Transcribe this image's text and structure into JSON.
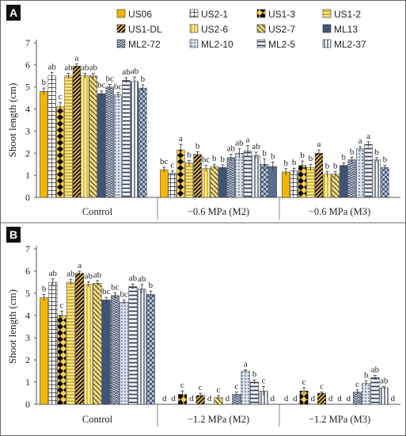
{
  "chart_data": [
    {
      "panel_label": "A",
      "type": "bar",
      "ylabel": "Shoot length (cm)",
      "ylim": [
        0,
        7
      ],
      "yticks": [
        "0",
        "1",
        "2",
        "3",
        "4",
        "5",
        "6",
        "7"
      ],
      "categories": [
        "Control",
        "−0.6 MPa (M2)",
        "−0.6 MPa (M3)"
      ],
      "legend_position": "top-right",
      "series": [
        {
          "name": "US06",
          "values": [
            4.8,
            1.25,
            1.15
          ],
          "errors": [
            0.15,
            0.12,
            0.15
          ],
          "letters": [
            "b",
            "bc",
            "b"
          ]
        },
        {
          "name": "US2-1",
          "values": [
            5.5,
            1.1,
            1.2
          ],
          "errors": [
            0.15,
            0.1,
            0.12
          ],
          "letters": [
            "ab",
            "c",
            "b"
          ]
        },
        {
          "name": "US1-3",
          "values": [
            4.1,
            2.15,
            1.45
          ],
          "errors": [
            0.2,
            0.25,
            0.2
          ],
          "letters": [
            "c",
            "a",
            "b"
          ]
        },
        {
          "name": "US1-2",
          "values": [
            5.5,
            1.55,
            1.35
          ],
          "errors": [
            0.12,
            0.12,
            0.15
          ],
          "letters": [
            "ab",
            "b",
            "b"
          ]
        },
        {
          "name": "US1-DL",
          "values": [
            5.95,
            1.95,
            2.0
          ],
          "errors": [
            0.1,
            0.12,
            0.15
          ],
          "letters": [
            "a",
            "b",
            "a"
          ]
        },
        {
          "name": "US2-6",
          "values": [
            5.5,
            1.3,
            1.05
          ],
          "errors": [
            0.12,
            0.15,
            0.12
          ],
          "letters": [
            "ab",
            "bc",
            "b"
          ]
        },
        {
          "name": "US2-7",
          "values": [
            5.5,
            1.4,
            1.05
          ],
          "errors": [
            0.12,
            0.1,
            0.12
          ],
          "letters": [
            "ab",
            "b",
            "b"
          ]
        },
        {
          "name": "ML13",
          "values": [
            4.7,
            1.35,
            1.45
          ],
          "errors": [
            0.12,
            0.12,
            0.12
          ],
          "letters": [
            "bc",
            "b",
            "b"
          ]
        },
        {
          "name": "ML2-72",
          "values": [
            5.0,
            1.8,
            1.7
          ],
          "errors": [
            0.12,
            0.15,
            0.12
          ],
          "letters": [
            "bc",
            "ab",
            "b"
          ]
        },
        {
          "name": "ML2-10",
          "values": [
            4.65,
            2.0,
            2.2
          ],
          "errors": [
            0.1,
            0.2,
            0.1
          ],
          "letters": [
            "bc",
            "ab",
            "a"
          ]
        },
        {
          "name": "ML2-5",
          "values": [
            5.3,
            2.1,
            2.4
          ],
          "errors": [
            0.12,
            0.25,
            0.12
          ],
          "letters": [
            "ab",
            "a",
            "a"
          ]
        },
        {
          "name": "ML2-37",
          "values": [
            5.25,
            1.9,
            1.7
          ],
          "errors": [
            0.2,
            0.15,
            0.1
          ],
          "letters": [
            "ab",
            "ab",
            "b"
          ]
        },
        {
          "name": "",
          "values": [
            4.95,
            1.5,
            1.35
          ],
          "errors": [
            0.15,
            0.25,
            0.1
          ],
          "letters": [
            "b",
            "b",
            "b"
          ]
        },
        {
          "name": "",
          "values": [
            0,
            1.4,
            0
          ],
          "errors": [
            0,
            0.2,
            0
          ],
          "letters": [
            "",
            "b",
            ""
          ]
        }
      ]
    },
    {
      "panel_label": "B",
      "type": "bar",
      "ylabel": "Shoot length (cm)",
      "ylim": [
        0,
        7
      ],
      "yticks": [
        "0",
        "1",
        "2",
        "3",
        "4",
        "5",
        "6",
        "7"
      ],
      "categories": [
        "Control",
        "−1.2 MPa (M2)",
        "−1.2 MPa (M3)"
      ],
      "series": [
        {
          "name": "US06",
          "values": [
            4.8,
            0,
            0
          ],
          "errors": [
            0.15,
            0,
            0
          ],
          "letters": [
            "b",
            "d",
            "d"
          ]
        },
        {
          "name": "US2-1",
          "values": [
            5.5,
            0,
            0
          ],
          "errors": [
            0.15,
            0,
            0
          ],
          "letters": [
            "ab",
            "d",
            "d"
          ]
        },
        {
          "name": "US1-3",
          "values": [
            4.0,
            0.45,
            0.6
          ],
          "errors": [
            0.2,
            0.15,
            0.15
          ],
          "letters": [
            "c",
            "c",
            "c"
          ]
        },
        {
          "name": "US1-2",
          "values": [
            5.5,
            0,
            0
          ],
          "errors": [
            0.12,
            0,
            0
          ],
          "letters": [
            "ab",
            "d",
            "d"
          ]
        },
        {
          "name": "US1-DL",
          "values": [
            5.9,
            0.4,
            0.5
          ],
          "errors": [
            0.1,
            0.1,
            0.05
          ],
          "letters": [
            "a",
            "c",
            "c"
          ]
        },
        {
          "name": "US2-6",
          "values": [
            5.4,
            0,
            0
          ],
          "errors": [
            0.12,
            0,
            0
          ],
          "letters": [
            "ab",
            "d",
            "d"
          ]
        },
        {
          "name": "US2-7",
          "values": [
            5.45,
            0.3,
            0
          ],
          "errors": [
            0.12,
            0.1,
            0
          ],
          "letters": [
            "ab",
            "c",
            "d"
          ]
        },
        {
          "name": "ML13",
          "values": [
            4.7,
            0,
            0
          ],
          "errors": [
            0.12,
            0,
            0
          ],
          "letters": [
            "bc",
            "d",
            "d"
          ]
        },
        {
          "name": "ML2-72",
          "values": [
            4.9,
            0.45,
            0.55
          ],
          "errors": [
            0.12,
            0.1,
            0.1
          ],
          "letters": [
            "bc",
            "c",
            "c"
          ]
        },
        {
          "name": "ML2-10",
          "values": [
            4.6,
            1.5,
            0.95
          ],
          "errors": [
            0.1,
            0.05,
            0.1
          ],
          "letters": [
            "bc",
            "a",
            "b"
          ]
        },
        {
          "name": "ML2-5",
          "values": [
            5.3,
            1.0,
            1.2
          ],
          "errors": [
            0.12,
            0.1,
            0.1
          ],
          "letters": [
            "ab",
            "b",
            "ab"
          ]
        },
        {
          "name": "ML2-37",
          "values": [
            5.2,
            0.6,
            0.75
          ],
          "errors": [
            0.2,
            0.2,
            0.05
          ],
          "letters": [
            "ab",
            "c",
            "ab"
          ]
        },
        {
          "name": "",
          "values": [
            4.95,
            0,
            0
          ],
          "errors": [
            0.15,
            0,
            0
          ],
          "letters": [
            "b",
            "d",
            "d"
          ]
        }
      ]
    }
  ]
}
